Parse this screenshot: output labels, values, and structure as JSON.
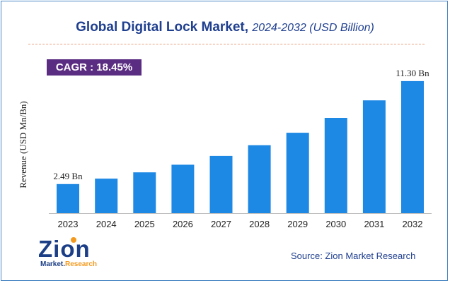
{
  "title": {
    "main": "Global Digital Lock Market,",
    "sub": "2024-2032 (USD Billion)"
  },
  "badge": {
    "label": "CAGR : 18.45%"
  },
  "source": "Source: Zion Market Research",
  "logo": {
    "word": "Zion",
    "sub_left": "Market.",
    "sub_right": "Research"
  },
  "colors": {
    "bar": "#1e88e5",
    "badge": "#5b2d82",
    "title": "#1f3f8f"
  },
  "chart_data": {
    "type": "bar",
    "categories": [
      "2023",
      "2024",
      "2025",
      "2026",
      "2027",
      "2028",
      "2029",
      "2030",
      "2031",
      "2032"
    ],
    "values": [
      2.49,
      2.95,
      3.49,
      4.14,
      4.9,
      5.81,
      6.88,
      8.15,
      9.65,
      11.3
    ],
    "data_labels": [
      {
        "index": 0,
        "text": "2.49 Bn"
      },
      {
        "index": 9,
        "text": "11.30 Bn"
      }
    ],
    "ylabel": "Revenue (USD Mn/Bn)",
    "xlabel": "",
    "ylim": [
      0,
      12.5
    ],
    "grid": false,
    "legend": "none"
  }
}
